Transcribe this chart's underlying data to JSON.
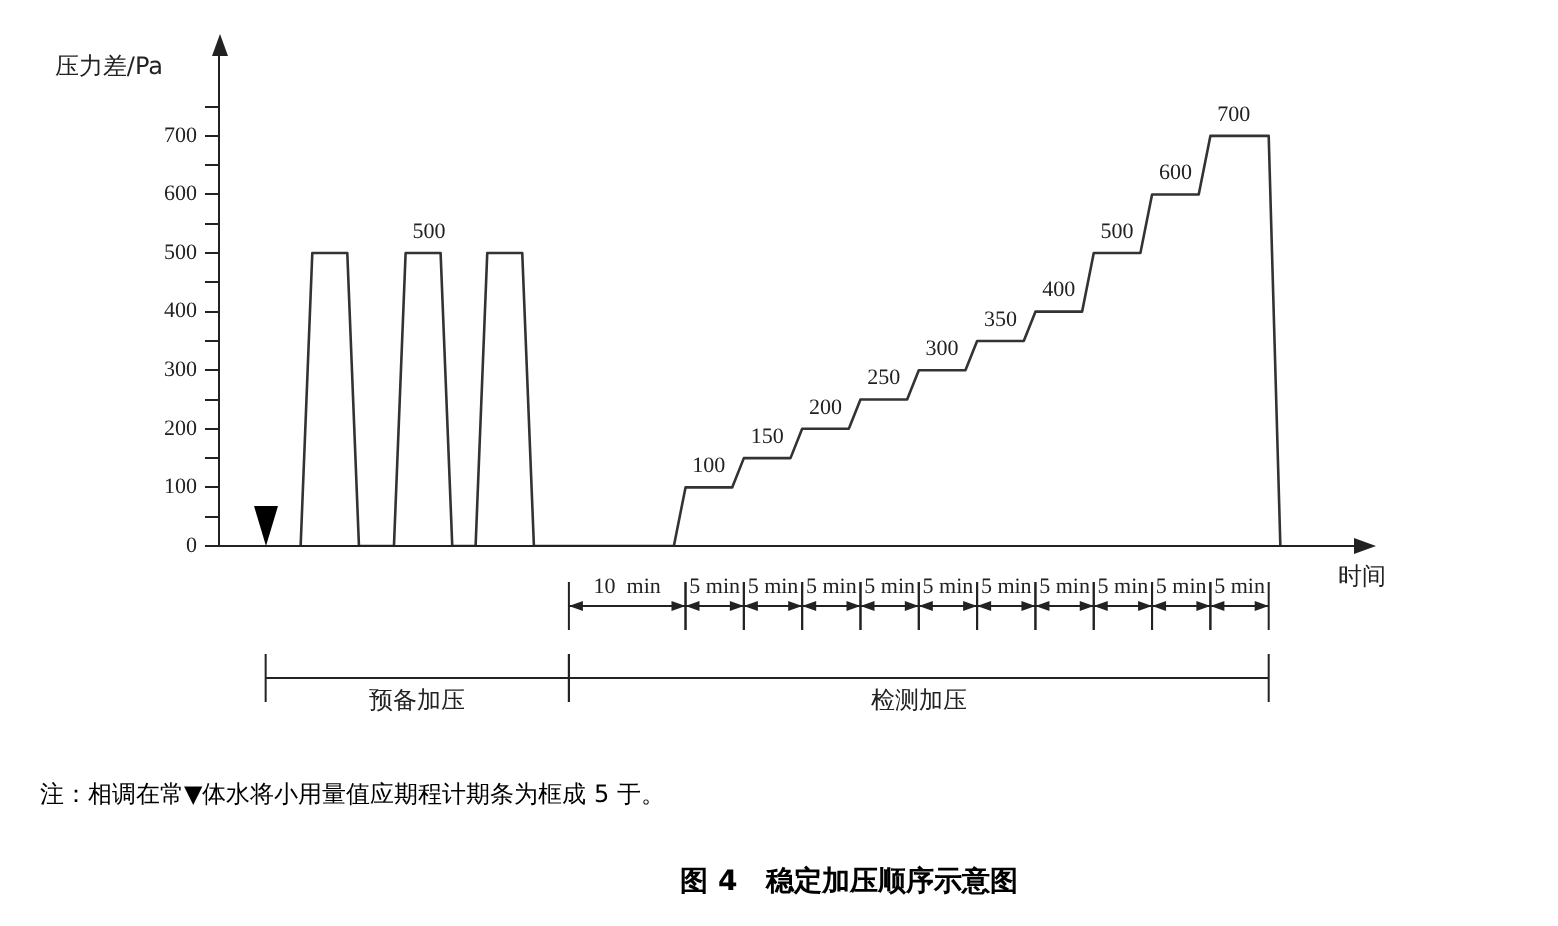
{
  "chart_data": {
    "type": "line",
    "title": "图 4　稳定加压顺序示意图",
    "xlabel": "时间",
    "ylabel": "压力差/Pa",
    "categories": [
      null,
      null,
      null,
      null,
      null,
      null,
      null,
      null,
      null,
      null,
      null,
      null,
      null,
      null,
      null,
      null,
      null,
      null,
      null,
      null,
      null,
      null,
      null,
      null,
      null,
      null,
      null,
      null,
      null,
      null,
      null,
      null,
      null,
      null,
      null,
      null,
      null,
      null,
      null,
      null,
      null,
      null,
      null,
      null,
      null,
      null,
      null,
      null,
      null,
      null,
      null,
      null,
      null,
      null,
      null,
      null,
      null,
      null,
      null,
      null,
      null,
      null,
      null,
      null,
      null,
      null,
      null,
      null,
      null,
      null,
      null,
      null,
      null,
      null,
      null,
      null,
      null,
      null,
      null,
      null,
      null,
      null,
      null,
      null,
      null,
      null,
      null,
      null,
      null,
      null,
      null,
      null,
      null,
      null,
      null,
      null,
      null,
      null,
      null
    ],
    "series": [
      {
        "color": "#333333",
        "values": [
          null,
          null,
          null,
          null,
          null,
          null,
          null,
          0,
          500,
          500,
          500,
          500,
          0,
          0,
          0,
          0,
          500,
          500,
          500,
          500,
          0,
          0,
          0,
          500,
          500,
          500,
          500,
          0,
          0,
          0,
          0,
          0,
          0,
          0,
          0,
          0,
          0,
          0,
          0,
          0,
          100,
          100,
          100,
          100,
          100,
          150,
          150,
          150,
          150,
          150,
          200,
          200,
          200,
          200,
          200,
          250,
          250,
          250,
          250,
          250,
          300,
          300,
          300,
          300,
          300,
          350,
          350,
          350,
          350,
          350,
          400,
          400,
          400,
          400,
          400,
          500,
          500,
          500,
          500,
          500,
          600,
          600,
          600,
          600,
          600,
          700,
          700,
          700,
          700,
          700,
          700,
          0,
          null,
          null,
          null,
          null,
          null,
          null,
          null
        ],
        "value_labels": [
          null,
          null,
          null,
          null,
          null,
          null,
          null,
          null,
          null,
          null,
          null,
          null,
          null,
          null,
          null,
          null,
          null,
          null,
          "500",
          null,
          null,
          null,
          null,
          null,
          null,
          null,
          null,
          null,
          null,
          null,
          null,
          null,
          null,
          null,
          null,
          null,
          null,
          null,
          null,
          null,
          null,
          null,
          "100",
          null,
          null,
          null,
          null,
          "150",
          null,
          null,
          null,
          null,
          "200",
          null,
          null,
          null,
          null,
          "250",
          null,
          null,
          null,
          null,
          "300",
          null,
          null,
          null,
          null,
          "350",
          null,
          null,
          null,
          null,
          "400",
          null,
          null,
          null,
          null,
          "500",
          null,
          null,
          null,
          null,
          "600",
          null,
          null,
          null,
          null,
          "700",
          null,
          null,
          null,
          null,
          null,
          null,
          null,
          null,
          null,
          null,
          null
        ]
      }
    ],
    "ylim": [
      0,
      850
    ],
    "yticks": [
      0,
      {
        "value": 50,
        "label": null
      },
      100,
      {
        "value": 150,
        "label": null
      },
      200,
      {
        "value": 250,
        "label": null
      },
      300,
      {
        "value": 350,
        "label": null
      },
      400,
      {
        "value": 450,
        "label": null
      },
      500,
      {
        "value": 550,
        "label": null
      },
      600,
      {
        "value": 650,
        "label": null
      },
      700,
      {
        "value": 750,
        "label": null
      }
    ],
    "tick_labels": "y",
    "annotations": [
      "预备加压",
      "检测加压",
      "10  min",
      "5 min",
      "5 min",
      "5 min",
      "5 min",
      "5 min",
      "5 min",
      "5 min",
      "5 min",
      "5 min",
      "5 min",
      "注：相调在常▼体水将小用量值应期程计期条为框成 5 于。"
    ]
  }
}
